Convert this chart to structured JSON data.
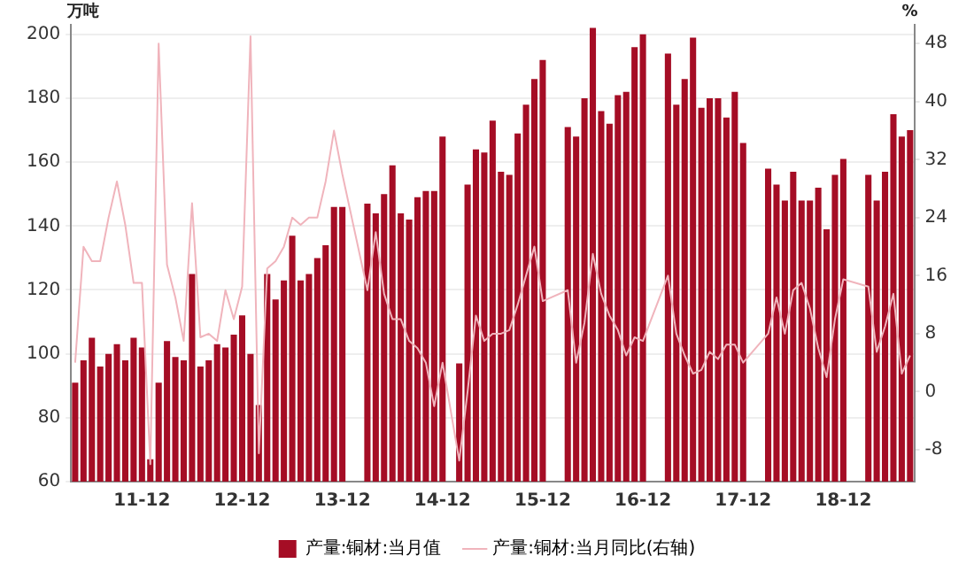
{
  "chart_data": {
    "type": "bar",
    "ylabel": "万吨",
    "y2label": "%",
    "categories": [
      null,
      null,
      null,
      null,
      null,
      null,
      null,
      null,
      "11-12",
      null,
      null,
      null,
      null,
      null,
      null,
      null,
      null,
      null,
      null,
      null,
      "12-12",
      null,
      null,
      null,
      null,
      null,
      null,
      null,
      null,
      null,
      null,
      null,
      "13-12",
      null,
      null,
      null,
      null,
      null,
      null,
      null,
      null,
      null,
      null,
      null,
      "14-12",
      null,
      null,
      null,
      null,
      null,
      null,
      null,
      null,
      null,
      null,
      null,
      "15-12",
      null,
      null,
      null,
      null,
      null,
      null,
      null,
      null,
      null,
      null,
      null,
      "16-12",
      null,
      null,
      null,
      null,
      null,
      null,
      null,
      null,
      null,
      null,
      null,
      "17-12",
      null,
      null,
      null,
      null,
      null,
      null,
      null,
      null,
      null,
      null,
      null,
      "18-12",
      null,
      null,
      null,
      null,
      null,
      null,
      null,
      null
    ],
    "series": [
      {
        "name": "产量:铜材:当月值",
        "color": "#a50d25",
        "values": [
          91,
          98,
          105,
          96,
          100,
          103,
          98,
          105,
          102,
          67,
          91,
          104,
          99,
          98,
          125,
          96,
          98,
          103,
          102,
          106,
          112,
          100,
          84,
          125,
          117,
          123,
          137,
          123,
          125,
          130,
          134,
          146,
          146,
          null,
          null,
          147,
          144,
          150,
          159,
          144,
          142,
          149,
          151,
          151,
          168,
          null,
          97,
          153,
          164,
          163,
          173,
          157,
          156,
          169,
          178,
          186,
          192,
          null,
          null,
          171,
          168,
          180,
          202,
          176,
          172,
          181,
          182,
          196,
          200,
          null,
          null,
          194,
          178,
          186,
          199,
          177,
          180,
          180,
          174,
          182,
          166,
          null,
          null,
          158,
          153,
          148,
          157,
          148,
          148,
          152,
          139,
          156,
          161,
          null,
          null,
          156,
          148,
          157,
          175,
          168,
          170
        ]
      },
      {
        "name": "产量:铜材:当月同比(右轴)",
        "type": "line",
        "axis": "y2",
        "color": "#f0b4bc",
        "values": [
          4,
          20,
          18,
          18,
          24,
          29,
          23,
          15,
          15,
          -10,
          48,
          17.5,
          13,
          7,
          26,
          7.5,
          8,
          7,
          14,
          10,
          14.5,
          49,
          -8.5,
          17,
          18,
          20,
          24,
          23,
          24,
          24,
          29,
          36,
          30,
          null,
          null,
          14,
          22,
          13.5,
          10,
          10,
          7,
          6,
          4,
          -2,
          4,
          null,
          -9.5,
          0,
          10.5,
          7,
          8,
          8,
          8.5,
          12,
          16,
          20,
          12.5,
          null,
          null,
          14,
          4,
          9.5,
          19,
          13.5,
          10.5,
          8.5,
          5,
          7.5,
          7,
          null,
          null,
          16,
          8,
          5,
          2.5,
          3,
          5.5,
          4.5,
          6.5,
          6.5,
          4,
          null,
          null,
          8,
          13,
          8,
          14,
          15,
          11.5,
          6,
          2,
          10,
          15.5,
          null,
          null,
          14.5,
          5.5,
          9,
          13.5,
          2.5,
          5
        ]
      }
    ],
    "ylim": [
      60,
      203
    ],
    "yticks": [
      60,
      80,
      100,
      120,
      140,
      160,
      180,
      200
    ],
    "y2lim": [
      -12.4,
      50.6
    ],
    "y2ticks": [
      -8,
      0,
      8,
      16,
      24,
      32,
      40,
      48
    ],
    "grid": "y",
    "legend": "bottom",
    "marker": "none",
    "line_style": "solid"
  }
}
